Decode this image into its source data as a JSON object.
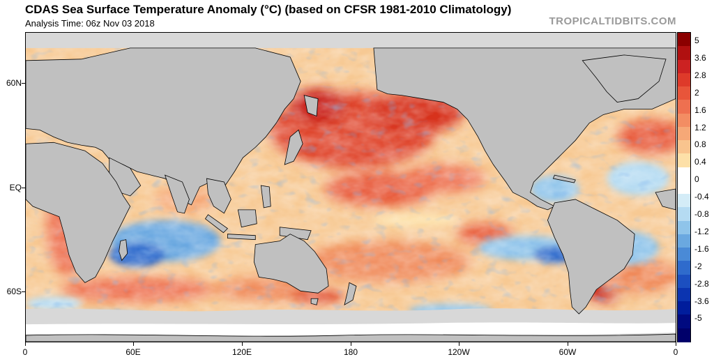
{
  "header": {
    "title": "CDAS Sea Surface Temperature Anomaly (°C) (based on CFSR 1981-2010 Climatology)",
    "analysis_time": "Analysis Time: 06z Nov 03 2018",
    "site": "TROPICALTIDBITS.COM"
  },
  "map": {
    "projection": "cylindrical, centered on 180",
    "land_color": "#c0c0c0",
    "sea_ice_color": "#d8d8d8",
    "lat_labels": [
      "60N",
      "EQ",
      "60S"
    ],
    "lon_labels": [
      "0",
      "60E",
      "120E",
      "180",
      "120W",
      "60W",
      "0"
    ]
  },
  "colorbar": {
    "levels": [
      "5",
      "3.6",
      "2.8",
      "2",
      "1.6",
      "1.2",
      "0.8",
      "0.4",
      "0",
      "-0.4",
      "-0.8",
      "-1.2",
      "-1.6",
      "-2",
      "-2.8",
      "-3.6",
      "-5"
    ],
    "colors": [
      "#8b0000",
      "#b01010",
      "#cc2222",
      "#de3a2a",
      "#e8553a",
      "#ee7050",
      "#f38d63",
      "#f6a877",
      "#f9c48e",
      "#fde0a8",
      "#ffffff",
      "#ffffff",
      "#d4ecf7",
      "#b5dbf2",
      "#8fc4ea",
      "#6aa8e0",
      "#4a8ad6",
      "#2f6bcc",
      "#1c4fc0",
      "#0b34b0",
      "#001d9c",
      "#000a80",
      "#00006a"
    ]
  }
}
